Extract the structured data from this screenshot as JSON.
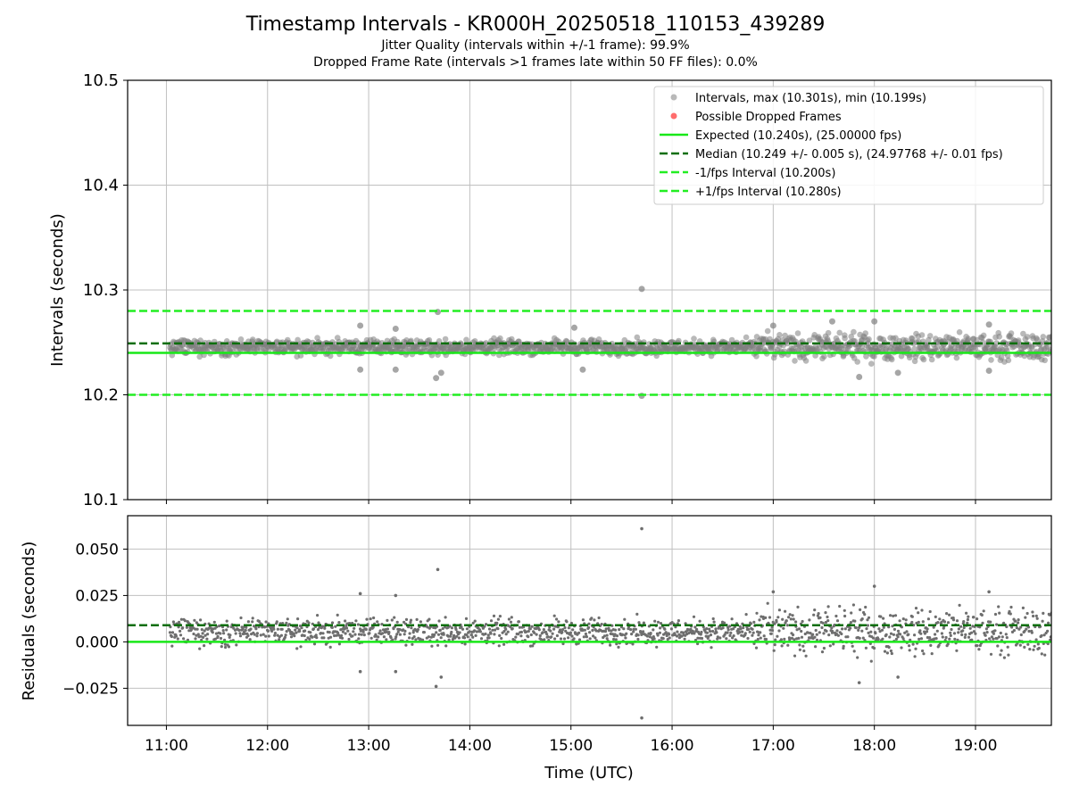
{
  "figure": {
    "title": "Timestamp Intervals - KR000H_20250518_110153_439289",
    "subtitle_1": "Jitter Quality (intervals within +/-1 frame): 99.9%",
    "subtitle_2": "Dropped Frame Rate (intervals >1 frames late within 50 FF files): 0.0%"
  },
  "colors": {
    "points": "#808080",
    "dropped": "#ff5c5c",
    "expected": "#18e818",
    "median": "#0a6e0a",
    "fps_lines": "#22ee22",
    "grid": "#c0c0c0"
  },
  "chart_data": [
    {
      "type": "scatter",
      "xlabel": "",
      "ylabel": "Intervals (seconds)",
      "xlim": [
        "10:37",
        "19:45"
      ],
      "ylim": [
        10.1,
        10.5
      ],
      "yticks": [
        "10.1",
        "10.2",
        "10.3",
        "10.4",
        "10.5"
      ],
      "grid": true,
      "legend_placement": "top-right",
      "series": [
        {
          "name": "Intervals, max (10.301s), min (10.199s)",
          "kind": "points",
          "summary": {
            "time_start": "11:02",
            "time_end": "19:45",
            "typical_min": 10.236,
            "typical_max": 10.255
          },
          "notable_points": [
            {
              "x": "15:42",
              "y": 10.301
            },
            {
              "x": "15:42",
              "y": 10.199
            },
            {
              "x": "13:41",
              "y": 10.279
            },
            {
              "x": "13:40",
              "y": 10.216
            },
            {
              "x": "13:43",
              "y": 10.221
            },
            {
              "x": "12:55",
              "y": 10.266
            },
            {
              "x": "12:55",
              "y": 10.224
            },
            {
              "x": "13:16",
              "y": 10.263
            },
            {
              "x": "13:16",
              "y": 10.224
            },
            {
              "x": "15:02",
              "y": 10.264
            },
            {
              "x": "15:07",
              "y": 10.224
            },
            {
              "x": "17:00",
              "y": 10.266
            },
            {
              "x": "17:35",
              "y": 10.27
            },
            {
              "x": "17:51",
              "y": 10.217
            },
            {
              "x": "18:00",
              "y": 10.27
            },
            {
              "x": "18:14",
              "y": 10.221
            },
            {
              "x": "19:08",
              "y": 10.267
            },
            {
              "x": "19:08",
              "y": 10.223
            }
          ]
        },
        {
          "name": "Possible Dropped Frames",
          "kind": "points",
          "points": []
        },
        {
          "name": "Expected (10.240s), (25.00000 fps)",
          "kind": "hline",
          "y": 10.24,
          "style": "solid"
        },
        {
          "name": "Median (10.249 +/- 0.005 s), (24.97768 +/- 0.01 fps)",
          "kind": "hline",
          "y": 10.249,
          "style": "dashed"
        },
        {
          "name": "-1/fps Interval (10.200s)",
          "kind": "hline",
          "y": 10.2,
          "style": "dashed"
        },
        {
          "name": "+1/fps Interval (10.280s)",
          "kind": "hline",
          "y": 10.28,
          "style": "dashed"
        }
      ]
    },
    {
      "type": "scatter",
      "xlabel": "Time (UTC)",
      "ylabel": "Residuals (seconds)",
      "xlim": [
        "10:37",
        "19:45"
      ],
      "ylim": [
        -0.045,
        0.068
      ],
      "xticks": [
        "11:00",
        "12:00",
        "13:00",
        "14:00",
        "15:00",
        "16:00",
        "17:00",
        "18:00",
        "19:00"
      ],
      "yticks": [
        "−0.025",
        "0.000",
        "0.025",
        "0.050"
      ],
      "ytick_values": [
        -0.025,
        0.0,
        0.025,
        0.05
      ],
      "grid": true,
      "series": [
        {
          "kind": "points",
          "summary": {
            "time_start": "11:02",
            "time_end": "19:45",
            "typical_min": -0.004,
            "typical_max": 0.015
          },
          "notable_points": [
            {
              "x": "15:42",
              "y": 0.061
            },
            {
              "x": "15:42",
              "y": -0.041
            },
            {
              "x": "13:41",
              "y": 0.039
            },
            {
              "x": "13:40",
              "y": -0.024
            },
            {
              "x": "13:43",
              "y": -0.019
            },
            {
              "x": "12:55",
              "y": 0.026
            },
            {
              "x": "12:55",
              "y": -0.016
            },
            {
              "x": "13:16",
              "y": 0.025
            },
            {
              "x": "13:16",
              "y": -0.016
            },
            {
              "x": "17:00",
              "y": 0.027
            },
            {
              "x": "17:51",
              "y": -0.022
            },
            {
              "x": "18:00",
              "y": 0.03
            },
            {
              "x": "18:14",
              "y": -0.019
            },
            {
              "x": "19:08",
              "y": 0.027
            }
          ]
        },
        {
          "kind": "hline",
          "y": 0.0,
          "style": "solid"
        },
        {
          "kind": "hline",
          "y": 0.009,
          "style": "dashed"
        }
      ]
    }
  ]
}
